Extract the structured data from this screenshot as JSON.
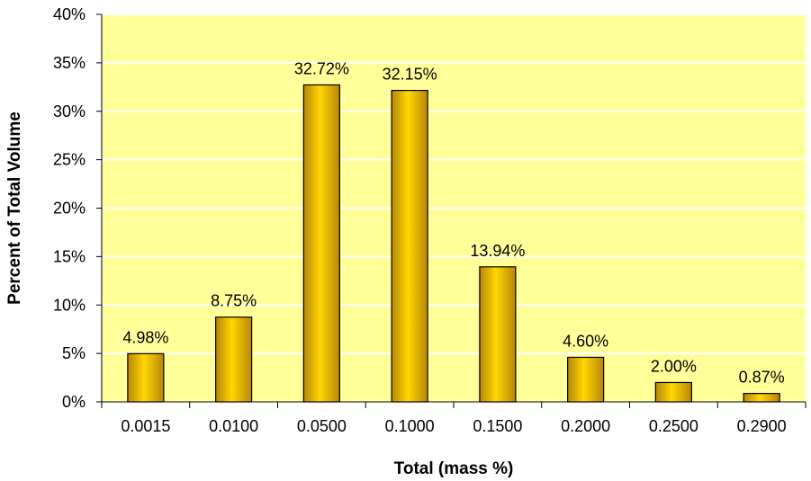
{
  "chart_data": {
    "type": "bar",
    "title": "",
    "xlabel": "Total (mass %)",
    "ylabel": "Percent of Total Volume",
    "categories": [
      "0.0015",
      "0.0100",
      "0.0500",
      "0.1000",
      "0.1500",
      "0.2000",
      "0.2500",
      "0.2900"
    ],
    "values": [
      4.98,
      8.75,
      32.72,
      32.15,
      13.94,
      4.6,
      2.0,
      0.87
    ],
    "value_labels": [
      "4.98%",
      "8.75%",
      "32.72%",
      "32.15%",
      "13.94%",
      "4.60%",
      "2.00%",
      "0.87%"
    ],
    "ylim": [
      0,
      40
    ],
    "yticks": [
      0,
      5,
      10,
      15,
      20,
      25,
      30,
      35,
      40
    ],
    "ytick_labels": [
      "0%",
      "5%",
      "10%",
      "15%",
      "20%",
      "25%",
      "30%",
      "35%",
      "40%"
    ],
    "grid": true,
    "legend": "none",
    "colors": {
      "plot_background": "#FFFF99",
      "gridline": "#FFFFFF",
      "bar_dark": "#B8860B",
      "bar_light": "#FFD700",
      "bar_outline": "#000000"
    }
  }
}
